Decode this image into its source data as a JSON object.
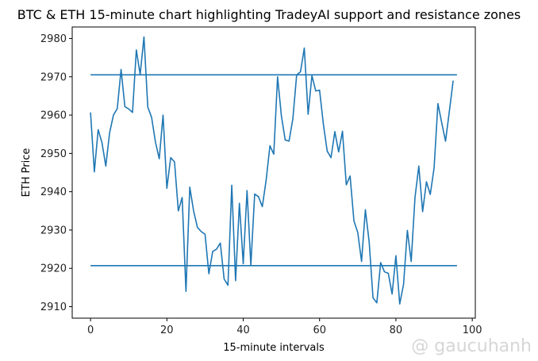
{
  "watermark": "@ gaucuhanh",
  "colors": {
    "line": "#1f77b4",
    "axes": "#000000",
    "background": "#ffffff"
  },
  "chart_data": {
    "type": "line",
    "title": "BTC & ETH 15-minute chart highlighting TradeyAI support and resistance zones",
    "xlabel": "15-minute intervals",
    "ylabel": "ETH Price",
    "xlim": [
      -4.8,
      100.8
    ],
    "ylim": [
      2907,
      2983
    ],
    "xticks": [
      0,
      20,
      40,
      60,
      80,
      100
    ],
    "yticks": [
      2910,
      2920,
      2930,
      2940,
      2950,
      2960,
      2970,
      2980
    ],
    "grid": false,
    "legend": "none",
    "series": [
      {
        "role": "price",
        "x": [
          0,
          1,
          2,
          3,
          4,
          5,
          6,
          7,
          8,
          9,
          10,
          11,
          12,
          13,
          14,
          15,
          16,
          17,
          18,
          19,
          20,
          21,
          22,
          23,
          24,
          25,
          26,
          27,
          28,
          29,
          30,
          31,
          32,
          33,
          34,
          35,
          36,
          37,
          38,
          39,
          40,
          41,
          42,
          43,
          44,
          45,
          46,
          47,
          48,
          49,
          50,
          51,
          52,
          53,
          54,
          55,
          56,
          57,
          58,
          59,
          60,
          61,
          62,
          63,
          64,
          65,
          66,
          67,
          68,
          69,
          70,
          71,
          72,
          73,
          74,
          75,
          76,
          77,
          78,
          79,
          80,
          81,
          82,
          83,
          84,
          85,
          86,
          87,
          88,
          89,
          90,
          91,
          92,
          93,
          94,
          95
        ],
        "y": [
          2960.7,
          2945.2,
          2956.2,
          2952.8,
          2946.7,
          2955.4,
          2960,
          2961.7,
          2971.9,
          2962.2,
          2961.6,
          2960.7,
          2977,
          2970.6,
          2980.4,
          2962.1,
          2959.4,
          2953,
          2948.6,
          2960,
          2940.9,
          2948.9,
          2947.8,
          2935,
          2938.5,
          2914,
          2941.2,
          2935,
          2930.7,
          2929.6,
          2928.9,
          2918.6,
          2924.4,
          2925,
          2926.6,
          2917.2,
          2915.6,
          2941.7,
          2916.8,
          2937,
          2921.2,
          2940.3,
          2920.8,
          2939.4,
          2938.7,
          2936.1,
          2943,
          2952,
          2949.8,
          2970,
          2959.8,
          2953.5,
          2953.2,
          2959,
          2970.5,
          2971.3,
          2977.5,
          2960.2,
          2970.3,
          2966.3,
          2966.5,
          2957.6,
          2950.6,
          2948.9,
          2955.7,
          2950.4,
          2955.8,
          2941.8,
          2944.1,
          2932.4,
          2929.4,
          2921.8,
          2935.3,
          2926.8,
          2912.3,
          2911,
          2921.5,
          2919.1,
          2918.7,
          2913.3,
          2923.3,
          2910.7,
          2915.8,
          2929.9,
          2921.8,
          2938.5,
          2946.7,
          2934.8,
          2942.6,
          2939.3,
          2946.2,
          2963,
          2958,
          2953.2,
          2961,
          2969
        ]
      },
      {
        "role": "resistance",
        "x": [
          0,
          96
        ],
        "y": [
          2970.5,
          2970.5
        ]
      },
      {
        "role": "support",
        "x": [
          0,
          96
        ],
        "y": [
          2920.7,
          2920.7
        ]
      }
    ]
  }
}
